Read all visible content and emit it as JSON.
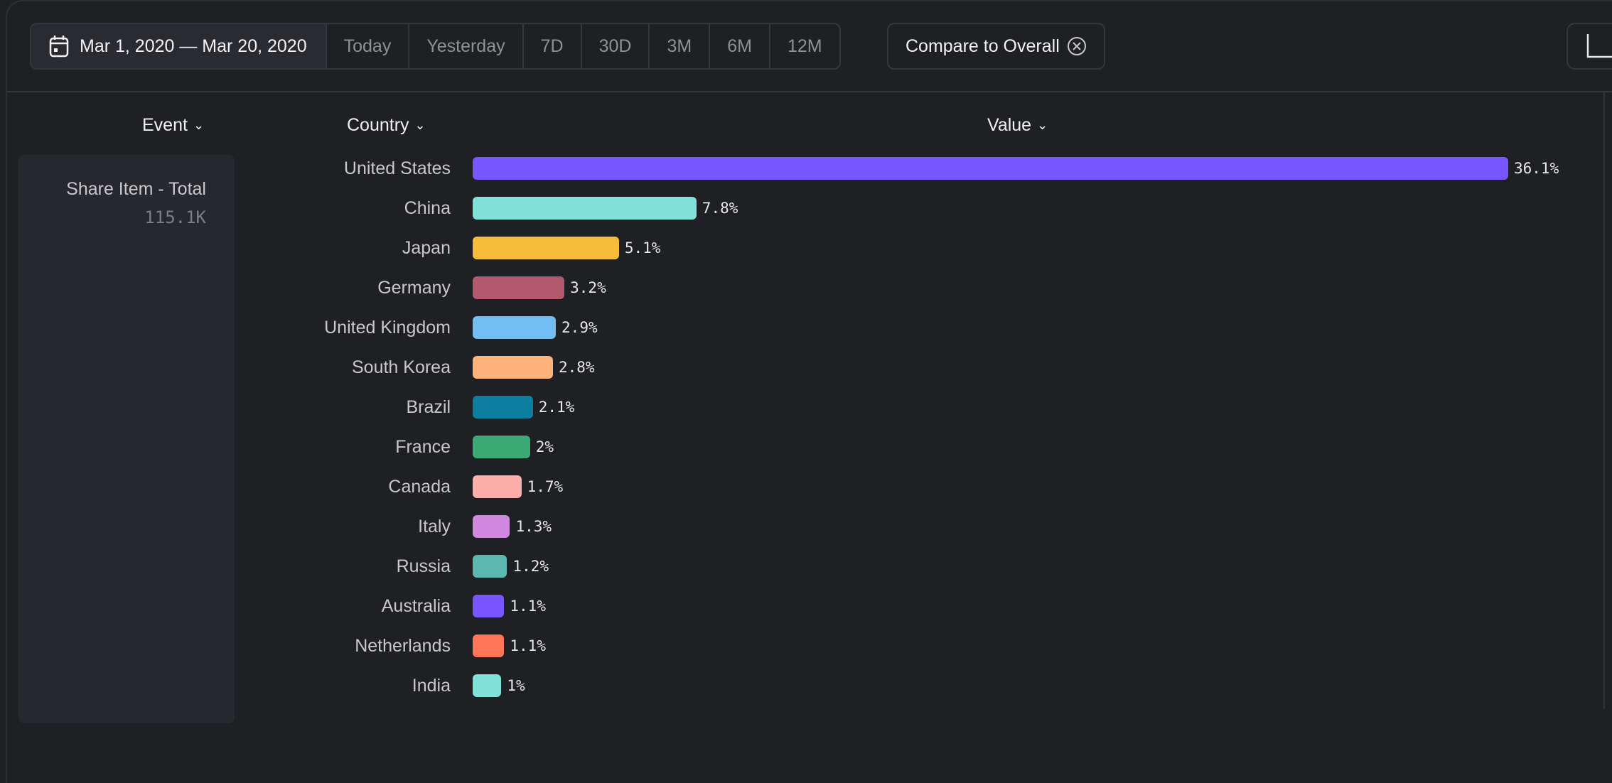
{
  "toolbar": {
    "date_range": "Mar 1, 2020 — Mar 20, 2020",
    "presets": [
      "Today",
      "Yesterday",
      "7D",
      "30D",
      "3M",
      "6M",
      "12M"
    ],
    "compare_label": "Compare to Overall"
  },
  "columns": {
    "event": "Event",
    "country": "Country",
    "value": "Value"
  },
  "event": {
    "name": "Share Item - Total",
    "value": "115.1K"
  },
  "chart_data": {
    "type": "bar",
    "orientation": "horizontal",
    "categories": [
      "United States",
      "China",
      "Japan",
      "Germany",
      "United Kingdom",
      "South Korea",
      "Brazil",
      "France",
      "Canada",
      "Italy",
      "Russia",
      "Australia",
      "Netherlands",
      "India"
    ],
    "values": [
      36.1,
      7.8,
      5.1,
      3.2,
      2.9,
      2.8,
      2.1,
      2,
      1.7,
      1.3,
      1.2,
      1.1,
      1.1,
      1
    ],
    "labels": [
      "36.1%",
      "7.8%",
      "5.1%",
      "3.2%",
      "2.9%",
      "2.8%",
      "2.1%",
      "2%",
      "1.7%",
      "1.3%",
      "1.2%",
      "1.1%",
      "1.1%",
      "1%"
    ],
    "colors": [
      "#7856ff",
      "#80e1d9",
      "#f8bc3b",
      "#b2596e",
      "#72bef4",
      "#ffb27a",
      "#0d7ea0",
      "#3ba974",
      "#feaeaa",
      "#d087de",
      "#5bb7af",
      "#7856ff",
      "#ff7557",
      "#80e1d9"
    ],
    "unit": "%"
  }
}
